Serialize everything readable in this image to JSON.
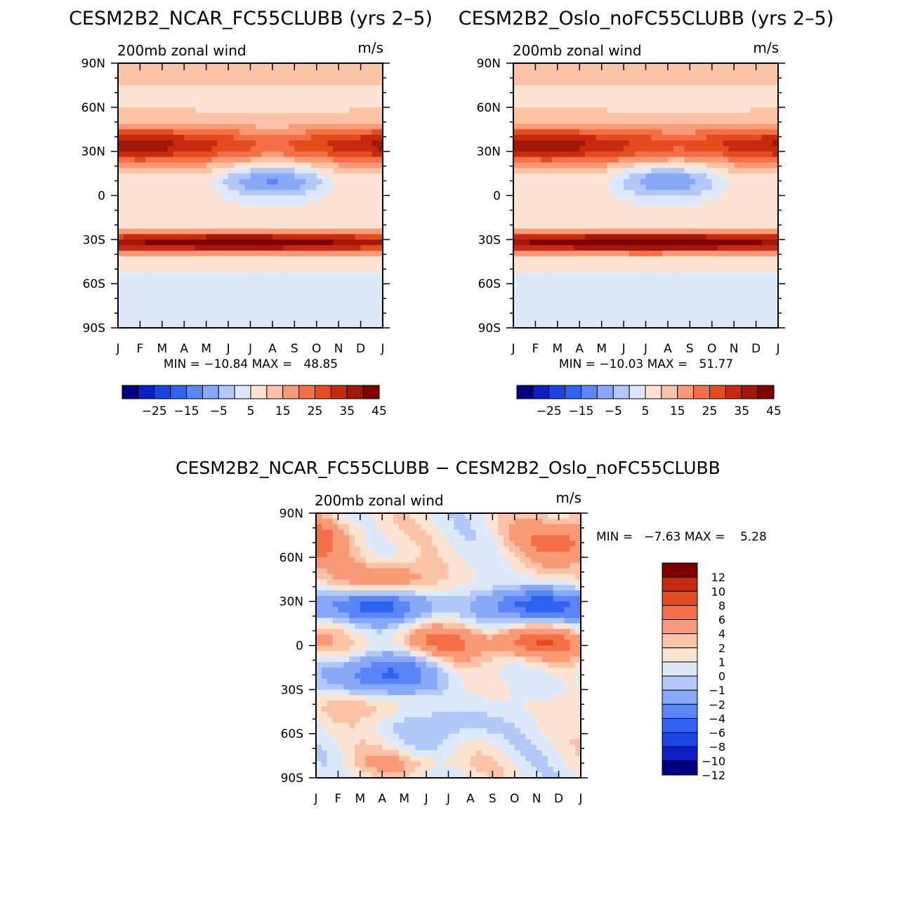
{
  "panels": [
    {
      "id": "ncar",
      "title": "CESM2B2_NCAR_FC55CLUBB (yrs 2–5)",
      "subtitle": "200mb zonal wind",
      "units": "m/s",
      "min_label": "MIN = −10.84 MAX =   48.85",
      "colorbar_labels": [
        "−25",
        "−15",
        "−5",
        "5",
        "15",
        "25",
        "35",
        "45"
      ]
    },
    {
      "id": "oslo",
      "title": "CESM2B2_Oslo_noFC55CLUBB (yrs 2–5)",
      "subtitle": "200mb zonal wind",
      "units": "m/s",
      "min_label": "MIN = −10.03 MAX =   51.77",
      "colorbar_labels": [
        "−25",
        "−15",
        "−5",
        "5",
        "15",
        "25",
        "35",
        "45"
      ]
    },
    {
      "id": "diff",
      "title": "CESM2B2_NCAR_FC55CLUBB − CESM2B2_Oslo_noFC55CLUBB",
      "subtitle": "200mb zonal wind",
      "units": "m/s",
      "min_label": "MIN =   −7.63 MAX =    5.28",
      "colorbar_labels": [
        "12",
        "10",
        "8",
        "6",
        "4",
        "2",
        "1",
        "0",
        "−1",
        "−2",
        "−4",
        "−6",
        "−8",
        "−10",
        "−12"
      ]
    }
  ],
  "colors": {
    "wind_scale": [
      "#000080",
      "#0d1ec3",
      "#1a45e0",
      "#2e63f0",
      "#5a87f5",
      "#88a9f7",
      "#b2c8f9",
      "#dce9fa",
      "#fde4d2",
      "#fbc2a6",
      "#f89a76",
      "#f46e46",
      "#e44d1e",
      "#c62a0f",
      "#a3170b",
      "#7f0000"
    ],
    "diff_scale": [
      "#000080",
      "#0d1ec3",
      "#1a45e0",
      "#2e63f0",
      "#5a87f5",
      "#88a9f7",
      "#b2c8f9",
      "#dce9fa",
      "#fde4d2",
      "#fbc2a6",
      "#f89a76",
      "#f46e46",
      "#e44d1e",
      "#c62a0f",
      "#7f0000"
    ]
  },
  "chart_data": [
    {
      "type": "heatmap",
      "title": "CESM2B2_NCAR_FC55CLUBB (yrs 2–5)",
      "subtitle": "200mb zonal wind",
      "units": "m/s",
      "x": [
        "J",
        "F",
        "M",
        "A",
        "M",
        "J",
        "J",
        "A",
        "S",
        "O",
        "N",
        "D",
        "J"
      ],
      "y": [
        "90N",
        "60N",
        "30N",
        "0",
        "30S",
        "60S",
        "90S"
      ],
      "y_values": [
        90,
        60,
        30,
        0,
        -30,
        -60,
        -90
      ],
      "levels": [
        -30,
        -25,
        -20,
        -15,
        -10,
        -5,
        0,
        5,
        10,
        15,
        20,
        25,
        30,
        35,
        40,
        45,
        50
      ],
      "min": -10.84,
      "max": 48.85,
      "features": [
        {
          "lat": -32,
          "lat_width": 5,
          "month_start": 0,
          "month_end": 12,
          "month_peak": 5.5,
          "base": 38,
          "peak": 48.85
        },
        {
          "lat": 34,
          "lat_width": 9,
          "month_start": 0,
          "month_end": 12,
          "month_peak": 1.0,
          "base": 22,
          "peak": 38
        },
        {
          "lat": 10,
          "lat_width": 8,
          "month_start": 4,
          "month_end": 10,
          "month_peak": 7.5,
          "base": -2,
          "peak": -10.84
        }
      ]
    },
    {
      "type": "heatmap",
      "title": "CESM2B2_Oslo_noFC55CLUBB (yrs 2–5)",
      "subtitle": "200mb zonal wind",
      "units": "m/s",
      "x": [
        "J",
        "F",
        "M",
        "A",
        "M",
        "J",
        "J",
        "A",
        "S",
        "O",
        "N",
        "D",
        "J"
      ],
      "y": [
        "90N",
        "60N",
        "30N",
        "0",
        "30S",
        "60S",
        "90S"
      ],
      "y_values": [
        90,
        60,
        30,
        0,
        -30,
        -60,
        -90
      ],
      "levels": [
        -30,
        -25,
        -20,
        -15,
        -10,
        -5,
        0,
        5,
        10,
        15,
        20,
        25,
        30,
        35,
        40,
        45,
        50
      ],
      "min": -10.03,
      "max": 51.77,
      "features": [
        {
          "lat": -32,
          "lat_width": 5,
          "month_start": 0,
          "month_end": 12,
          "month_peak": 6.0,
          "base": 40,
          "peak": 51.77
        },
        {
          "lat": 34,
          "lat_width": 9,
          "month_start": 0,
          "month_end": 12,
          "month_peak": 1.5,
          "base": 24,
          "peak": 38
        },
        {
          "lat": 10,
          "lat_width": 8,
          "month_start": 4,
          "month_end": 10,
          "month_peak": 7.0,
          "base": -2,
          "peak": -10.03
        }
      ]
    },
    {
      "type": "heatmap",
      "title": "CESM2B2_NCAR_FC55CLUBB − CESM2B2_Oslo_noFC55CLUBB",
      "subtitle": "200mb zonal wind",
      "units": "m/s",
      "x": [
        "J",
        "F",
        "M",
        "A",
        "M",
        "J",
        "J",
        "A",
        "S",
        "O",
        "N",
        "D",
        "J"
      ],
      "y": [
        "90N",
        "60N",
        "30N",
        "0",
        "30S",
        "60S",
        "90S"
      ],
      "y_values": [
        90,
        60,
        30,
        0,
        -30,
        -60,
        -90
      ],
      "levels": [
        -12,
        -10,
        -8,
        -6,
        -4,
        -2,
        -1,
        0,
        1,
        2,
        4,
        6,
        8,
        10,
        12
      ],
      "min": -7.63,
      "max": 5.28,
      "features": [
        {
          "lat": 27,
          "lat_width": 8,
          "month": 3.0,
          "value": -7.0
        },
        {
          "lat": 27,
          "lat_width": 8,
          "month": 10.0,
          "value": -7.63
        },
        {
          "lat": -20,
          "lat_width": 10,
          "month": 3.0,
          "value": -6.5
        },
        {
          "lat": 2,
          "lat_width": 8,
          "month": 5.5,
          "value": 4.0
        },
        {
          "lat": 2,
          "lat_width": 8,
          "month": 10.0,
          "value": 5.28
        },
        {
          "lat": 45,
          "lat_width": 8,
          "month": 3.0,
          "value": 4.0
        },
        {
          "lat": 72,
          "lat_width": 12,
          "month": 11.5,
          "value": 5.0
        },
        {
          "lat": -40,
          "lat_width": 8,
          "month": 2.0,
          "value": 2.0
        },
        {
          "lat": -55,
          "lat_width": 10,
          "month": 6.0,
          "value": -2.0
        },
        {
          "lat": -80,
          "lat_width": 6,
          "month": 4.0,
          "value": 2.0
        }
      ]
    }
  ]
}
